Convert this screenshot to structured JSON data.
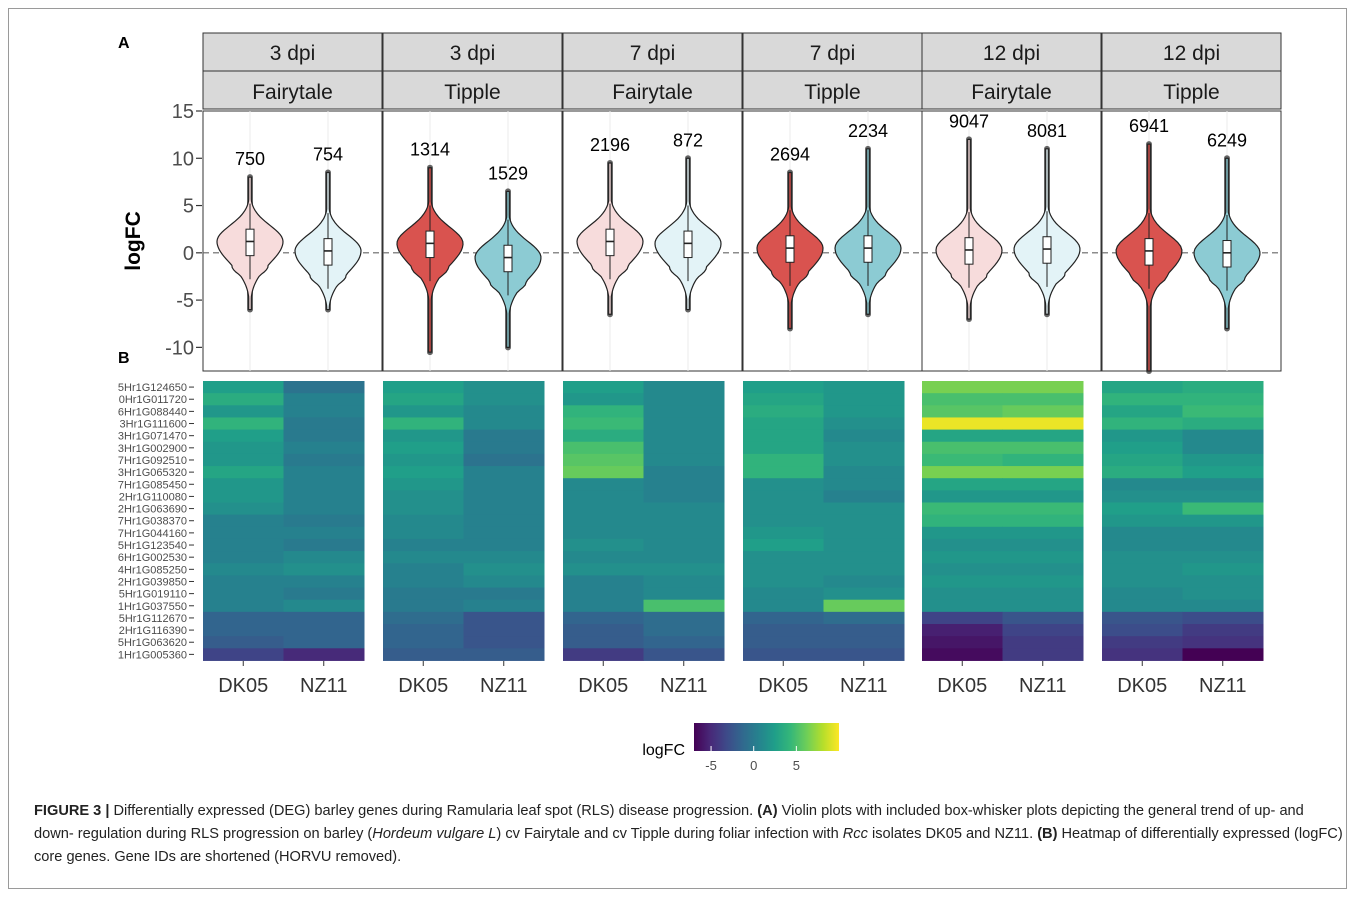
{
  "figure": {
    "panel_a_label": "A",
    "panel_b_label": "B",
    "colors": {
      "fairytale_fill": "#f7dcdc",
      "tipple_fill": "#d9534f",
      "dk05_light": "#f7dcdc",
      "nz11_light": "#e3f3f7",
      "nz11_dark": "#8ccbd3",
      "strip_bg": "#d9d9d9"
    },
    "caption": {
      "label": "FIGURE 3 |",
      "text1": " Differentially expressed (DEG) barley genes during Ramularia leaf spot (RLS) disease progression. ",
      "a_label": "(A)",
      "text2": " Violin plots with included box-whisker plots depicting the general trend of up- and down- regulation during RLS progression on barley (",
      "species": "Hordeum vulgare L",
      "text3": ") cv Fairytale and cv Tipple during foliar infection with ",
      "rcc": "Rcc",
      "text4": " isolates DK05 and NZ11. ",
      "b_label": "(B)",
      "text5": " Heatmap of differentially expressed (logFC) core genes. Gene IDs are shortened (HORVU removed)."
    }
  },
  "chart_data": [
    {
      "type": "violin",
      "ylabel": "logFC",
      "ylim": [
        -12.5,
        15
      ],
      "yticks": [
        15,
        10,
        5,
        0,
        -5,
        -10
      ],
      "reference_line": 0,
      "facets": [
        {
          "day": "3 dpi",
          "cultivar": "Fairytale",
          "groups": [
            {
              "isolate": "DK05",
              "n": "750",
              "median": 1.2,
              "min": -6,
              "max": 8
            },
            {
              "isolate": "NZ11",
              "n": "754",
              "median": 0.2,
              "min": -6,
              "max": 8.5
            }
          ]
        },
        {
          "day": "3 dpi",
          "cultivar": "Tipple",
          "groups": [
            {
              "isolate": "DK05",
              "n": "1314",
              "median": 1.0,
              "min": -10.5,
              "max": 9
            },
            {
              "isolate": "NZ11",
              "n": "1529",
              "median": -0.5,
              "min": -10,
              "max": 6.5
            }
          ]
        },
        {
          "day": "7 dpi",
          "cultivar": "Fairytale",
          "groups": [
            {
              "isolate": "DK05",
              "n": "2196",
              "median": 1.2,
              "min": -6.5,
              "max": 9.5
            },
            {
              "isolate": "NZ11",
              "n": "872",
              "median": 1.0,
              "min": -6,
              "max": 10
            }
          ]
        },
        {
          "day": "7 dpi",
          "cultivar": "Tipple",
          "groups": [
            {
              "isolate": "DK05",
              "n": "2694",
              "median": 0.5,
              "min": -8,
              "max": 8.5
            },
            {
              "isolate": "NZ11",
              "n": "2234",
              "median": 0.5,
              "min": -6.5,
              "max": 11
            }
          ]
        },
        {
          "day": "12 dpi",
          "cultivar": "Fairytale",
          "groups": [
            {
              "isolate": "DK05",
              "n": "9047",
              "median": 0.3,
              "min": -7,
              "max": 12
            },
            {
              "isolate": "NZ11",
              "n": "8081",
              "median": 0.4,
              "min": -6.5,
              "max": 11
            }
          ]
        },
        {
          "day": "12 dpi",
          "cultivar": "Tipple",
          "groups": [
            {
              "isolate": "DK05",
              "n": "6941",
              "median": 0.2,
              "min": -12.5,
              "max": 11.5
            },
            {
              "isolate": "NZ11",
              "n": "6249",
              "median": 0.0,
              "min": -8,
              "max": 10
            }
          ]
        }
      ]
    },
    {
      "type": "heatmap",
      "rows": [
        "5Hr1G124650",
        "0Hr1G011720",
        "6Hr1G088440",
        "3Hr1G111600",
        "3Hr1G071470",
        "3Hr1G002900",
        "7Hr1G092510",
        "3Hr1G065320",
        "7Hr1G085450",
        "2Hr1G110080",
        "2Hr1G063690",
        "7Hr1G038370",
        "7Hr1G044160",
        "5Hr1G123540",
        "6Hr1G002530",
        "4Hr1G085250",
        "2Hr1G039850",
        "5Hr1G019110",
        "1Hr1G037550",
        "5Hr1G112670",
        "2Hr1G116390",
        "5Hr1G063620",
        "1Hr1G005360"
      ],
      "columns": [
        "DK05",
        "NZ11"
      ],
      "panels": [
        {
          "matrix": [
            [
              2.5,
              -0.5
            ],
            [
              3.5,
              0.5
            ],
            [
              2,
              0.5
            ],
            [
              4,
              0
            ],
            [
              2.5,
              0
            ],
            [
              2,
              0.5
            ],
            [
              2,
              0
            ],
            [
              3,
              0.5
            ],
            [
              2,
              0.5
            ],
            [
              2,
              0.5
            ],
            [
              1.5,
              0.5
            ],
            [
              0.5,
              0
            ],
            [
              0.5,
              0.5
            ],
            [
              0.5,
              0
            ],
            [
              0.5,
              1
            ],
            [
              1,
              1.5
            ],
            [
              0.5,
              0.5
            ],
            [
              0.5,
              0
            ],
            [
              0.5,
              1
            ],
            [
              -1.5,
              -1.5
            ],
            [
              -1.5,
              -1.5
            ],
            [
              -2,
              -1.5
            ],
            [
              -3.5,
              -5
            ]
          ]
        },
        {
          "matrix": [
            [
              2.5,
              1.5
            ],
            [
              3,
              1.5
            ],
            [
              2,
              1
            ],
            [
              4,
              1
            ],
            [
              2,
              0
            ],
            [
              2.5,
              0
            ],
            [
              2,
              -0.5
            ],
            [
              2.5,
              0.5
            ],
            [
              2,
              0.5
            ],
            [
              1.5,
              0.5
            ],
            [
              1.5,
              0.5
            ],
            [
              1,
              0.5
            ],
            [
              1,
              0.5
            ],
            [
              0.5,
              0.5
            ],
            [
              1,
              1
            ],
            [
              0.5,
              1.5
            ],
            [
              0.5,
              1
            ],
            [
              0,
              0
            ],
            [
              0,
              0.5
            ],
            [
              -1,
              -2.5
            ],
            [
              -1.5,
              -2.5
            ],
            [
              -1.5,
              -2.5
            ],
            [
              -2,
              -2
            ]
          ]
        },
        {
          "matrix": [
            [
              2.5,
              1
            ],
            [
              2,
              1
            ],
            [
              4,
              1
            ],
            [
              4.5,
              1
            ],
            [
              3.5,
              1
            ],
            [
              5,
              1
            ],
            [
              5.5,
              1
            ],
            [
              6,
              0.5
            ],
            [
              1,
              0.5
            ],
            [
              1,
              0.5
            ],
            [
              1,
              1
            ],
            [
              1,
              1
            ],
            [
              1,
              1
            ],
            [
              1.5,
              1
            ],
            [
              1,
              1
            ],
            [
              1.5,
              1.5
            ],
            [
              0.5,
              1
            ],
            [
              0.5,
              1
            ],
            [
              0.5,
              5
            ],
            [
              -1.5,
              -1
            ],
            [
              -2,
              -1
            ],
            [
              -2,
              -1.5
            ],
            [
              -4,
              -2.5
            ]
          ]
        },
        {
          "matrix": [
            [
              2.5,
              2
            ],
            [
              3,
              2
            ],
            [
              3.5,
              2
            ],
            [
              3,
              1.5
            ],
            [
              3,
              1
            ],
            [
              3,
              1.5
            ],
            [
              4,
              1.5
            ],
            [
              4,
              1
            ],
            [
              1.5,
              1
            ],
            [
              1.5,
              0.5
            ],
            [
              1.5,
              1.5
            ],
            [
              1.5,
              1.5
            ],
            [
              2,
              1.5
            ],
            [
              2.5,
              1.5
            ],
            [
              1.5,
              1.5
            ],
            [
              1.5,
              1.5
            ],
            [
              1.5,
              1
            ],
            [
              1,
              1.5
            ],
            [
              1,
              6
            ],
            [
              -1.5,
              -1
            ],
            [
              -2,
              -2
            ],
            [
              -2,
              -2
            ],
            [
              -2.5,
              -2.5
            ]
          ]
        },
        {
          "matrix": [
            [
              6.5,
              6.5
            ],
            [
              5,
              5
            ],
            [
              5.5,
              6
            ],
            [
              9.5,
              9.5
            ],
            [
              3,
              3
            ],
            [
              5,
              5
            ],
            [
              4.5,
              4
            ],
            [
              6.5,
              6.5
            ],
            [
              3,
              3
            ],
            [
              2,
              2
            ],
            [
              4.5,
              4.5
            ],
            [
              4,
              4
            ],
            [
              2,
              2
            ],
            [
              1.5,
              1.5
            ],
            [
              2,
              2
            ],
            [
              1.5,
              1.5
            ],
            [
              2,
              2
            ],
            [
              1.5,
              1.5
            ],
            [
              1.5,
              1.5
            ],
            [
              -3.5,
              -2.5
            ],
            [
              -5.5,
              -3.5
            ],
            [
              -6,
              -4
            ],
            [
              -6.5,
              -4
            ]
          ]
        },
        {
          "matrix": [
            [
              3,
              3.5
            ],
            [
              4,
              4
            ],
            [
              3,
              4.5
            ],
            [
              4,
              3.5
            ],
            [
              2,
              1
            ],
            [
              2.5,
              1
            ],
            [
              3,
              2
            ],
            [
              3.5,
              2.5
            ],
            [
              1,
              1
            ],
            [
              1.5,
              1.5
            ],
            [
              2.5,
              4.5
            ],
            [
              2,
              2
            ],
            [
              1,
              1
            ],
            [
              1,
              1
            ],
            [
              1.5,
              1.5
            ],
            [
              1.5,
              2
            ],
            [
              1.5,
              1.5
            ],
            [
              1,
              1.5
            ],
            [
              1,
              1
            ],
            [
              -2.5,
              -3
            ],
            [
              -3,
              -4
            ],
            [
              -4,
              -4.5
            ],
            [
              -4.5,
              -7
            ]
          ]
        }
      ]
    },
    {
      "type": "colorbar",
      "title": "logFC",
      "ticks": [
        -5,
        0,
        5
      ],
      "range": [
        -7,
        10
      ],
      "colormap": "viridis"
    }
  ]
}
